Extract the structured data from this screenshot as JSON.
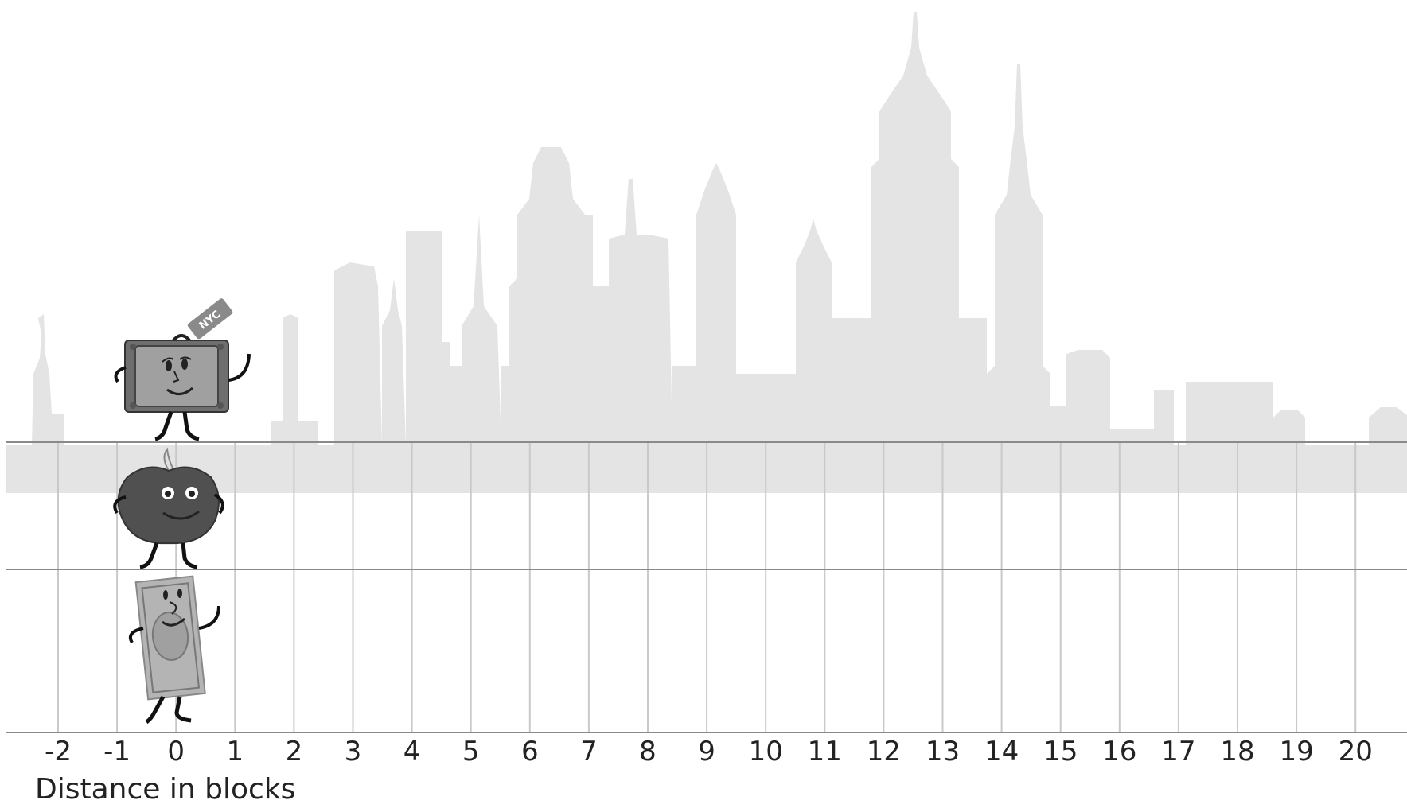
{
  "axis": {
    "title": "Distance in blocks",
    "ticks": [
      "-2",
      "-1",
      "0",
      "1",
      "2",
      "3",
      "4",
      "5",
      "6",
      "7",
      "8",
      "9",
      "10",
      "11",
      "12",
      "13",
      "14",
      "15",
      "16",
      "17",
      "18",
      "19",
      "20"
    ]
  },
  "characters": [
    {
      "name": "suitcase",
      "row": 1,
      "position": 0,
      "tag": "NYC",
      "icon": "suitcase-character-icon"
    },
    {
      "name": "apple",
      "row": 2,
      "position": 0,
      "icon": "apple-character-icon"
    },
    {
      "name": "dollar-bill",
      "row": 3,
      "position": 0,
      "icon": "dollar-bill-character-icon"
    }
  ],
  "colors": {
    "skyline": "#e4e4e4",
    "grid_line": "#c9c9c9",
    "row_line": "#8a8a8a",
    "suitcase": "#8c8c8c",
    "apple": "#505050",
    "bill": "#b4b4b4"
  }
}
